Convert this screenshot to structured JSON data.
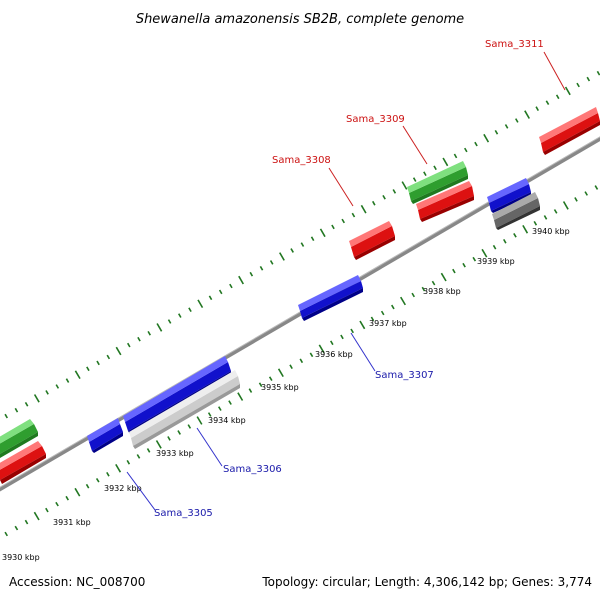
{
  "title": "Shewanella amazonensis SB2B, complete genome",
  "footer": {
    "accession": "Accession: NC_008700",
    "summary": "Topology: circular; Length: 4,306,142 bp; Genes: 3,774"
  },
  "ticks": [
    "3930 kbp",
    "3931 kbp",
    "3932 kbp",
    "3933 kbp",
    "3934 kbp",
    "3935 kbp",
    "3936 kbp",
    "3937 kbp",
    "3938 kbp",
    "3939 kbp",
    "3940 kbp"
  ],
  "labels": {
    "sama_3305": "Sama_3305",
    "sama_3306": "Sama_3306",
    "sama_3307": "Sama_3307",
    "sama_3308": "Sama_3308",
    "sama_3309": "Sama_3309",
    "sama_3311": "Sama_3311"
  },
  "colors": {
    "forward_cds": "#ee1111",
    "reverse_cds": "#1111dd",
    "rna": "#33cc33",
    "pseudo": "#666666",
    "other": "#cccccc",
    "ticks": "#227722",
    "backbone": "#888888"
  }
}
